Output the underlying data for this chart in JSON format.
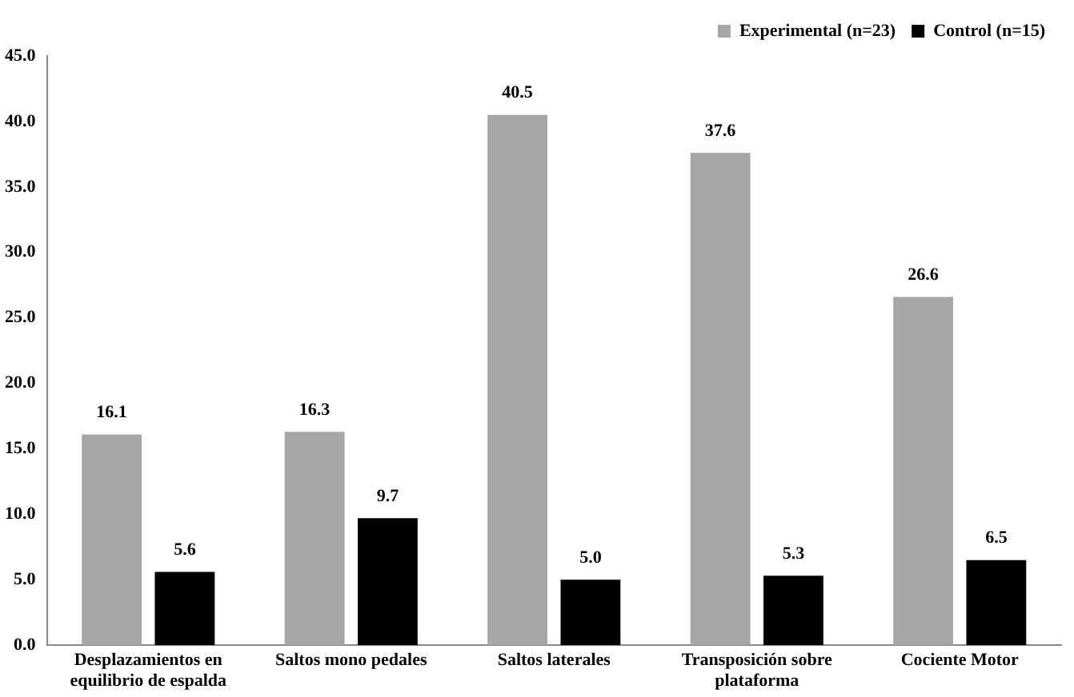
{
  "chart_data": {
    "type": "bar",
    "categories": [
      "Desplazamientos en equilibrio de espalda",
      "Saltos mono pedales",
      "Saltos laterales",
      "Transposición sobre plataforma",
      "Cociente Motor"
    ],
    "series": [
      {
        "name": "Experimental (n=23)",
        "color": "#a6a6a6",
        "values": [
          16.1,
          16.3,
          40.5,
          37.6,
          26.6
        ],
        "value_labels": [
          "16.1",
          "16.3",
          "40.5",
          "37.6",
          "26.6"
        ]
      },
      {
        "name": "Control (n=15)",
        "color": "#000000",
        "values": [
          5.6,
          9.7,
          5.0,
          5.3,
          6.5
        ],
        "value_labels": [
          "5.6",
          "9.7",
          "5.0",
          "5.3",
          "6.5"
        ]
      }
    ],
    "ylim": [
      0,
      45
    ],
    "yticks": [
      {
        "value": 0,
        "label": "0.0"
      },
      {
        "value": 5,
        "label": "5.0"
      },
      {
        "value": 10,
        "label": "10.0"
      },
      {
        "value": 15,
        "label": "15.0"
      },
      {
        "value": 20,
        "label": "20.0"
      },
      {
        "value": 25,
        "label": "25.0"
      },
      {
        "value": 30,
        "label": "30.0"
      },
      {
        "value": 35,
        "label": "35.0"
      },
      {
        "value": 40,
        "label": "40.0"
      },
      {
        "value": 45,
        "label": "45.0"
      }
    ],
    "grid": false,
    "legend": "top right"
  }
}
